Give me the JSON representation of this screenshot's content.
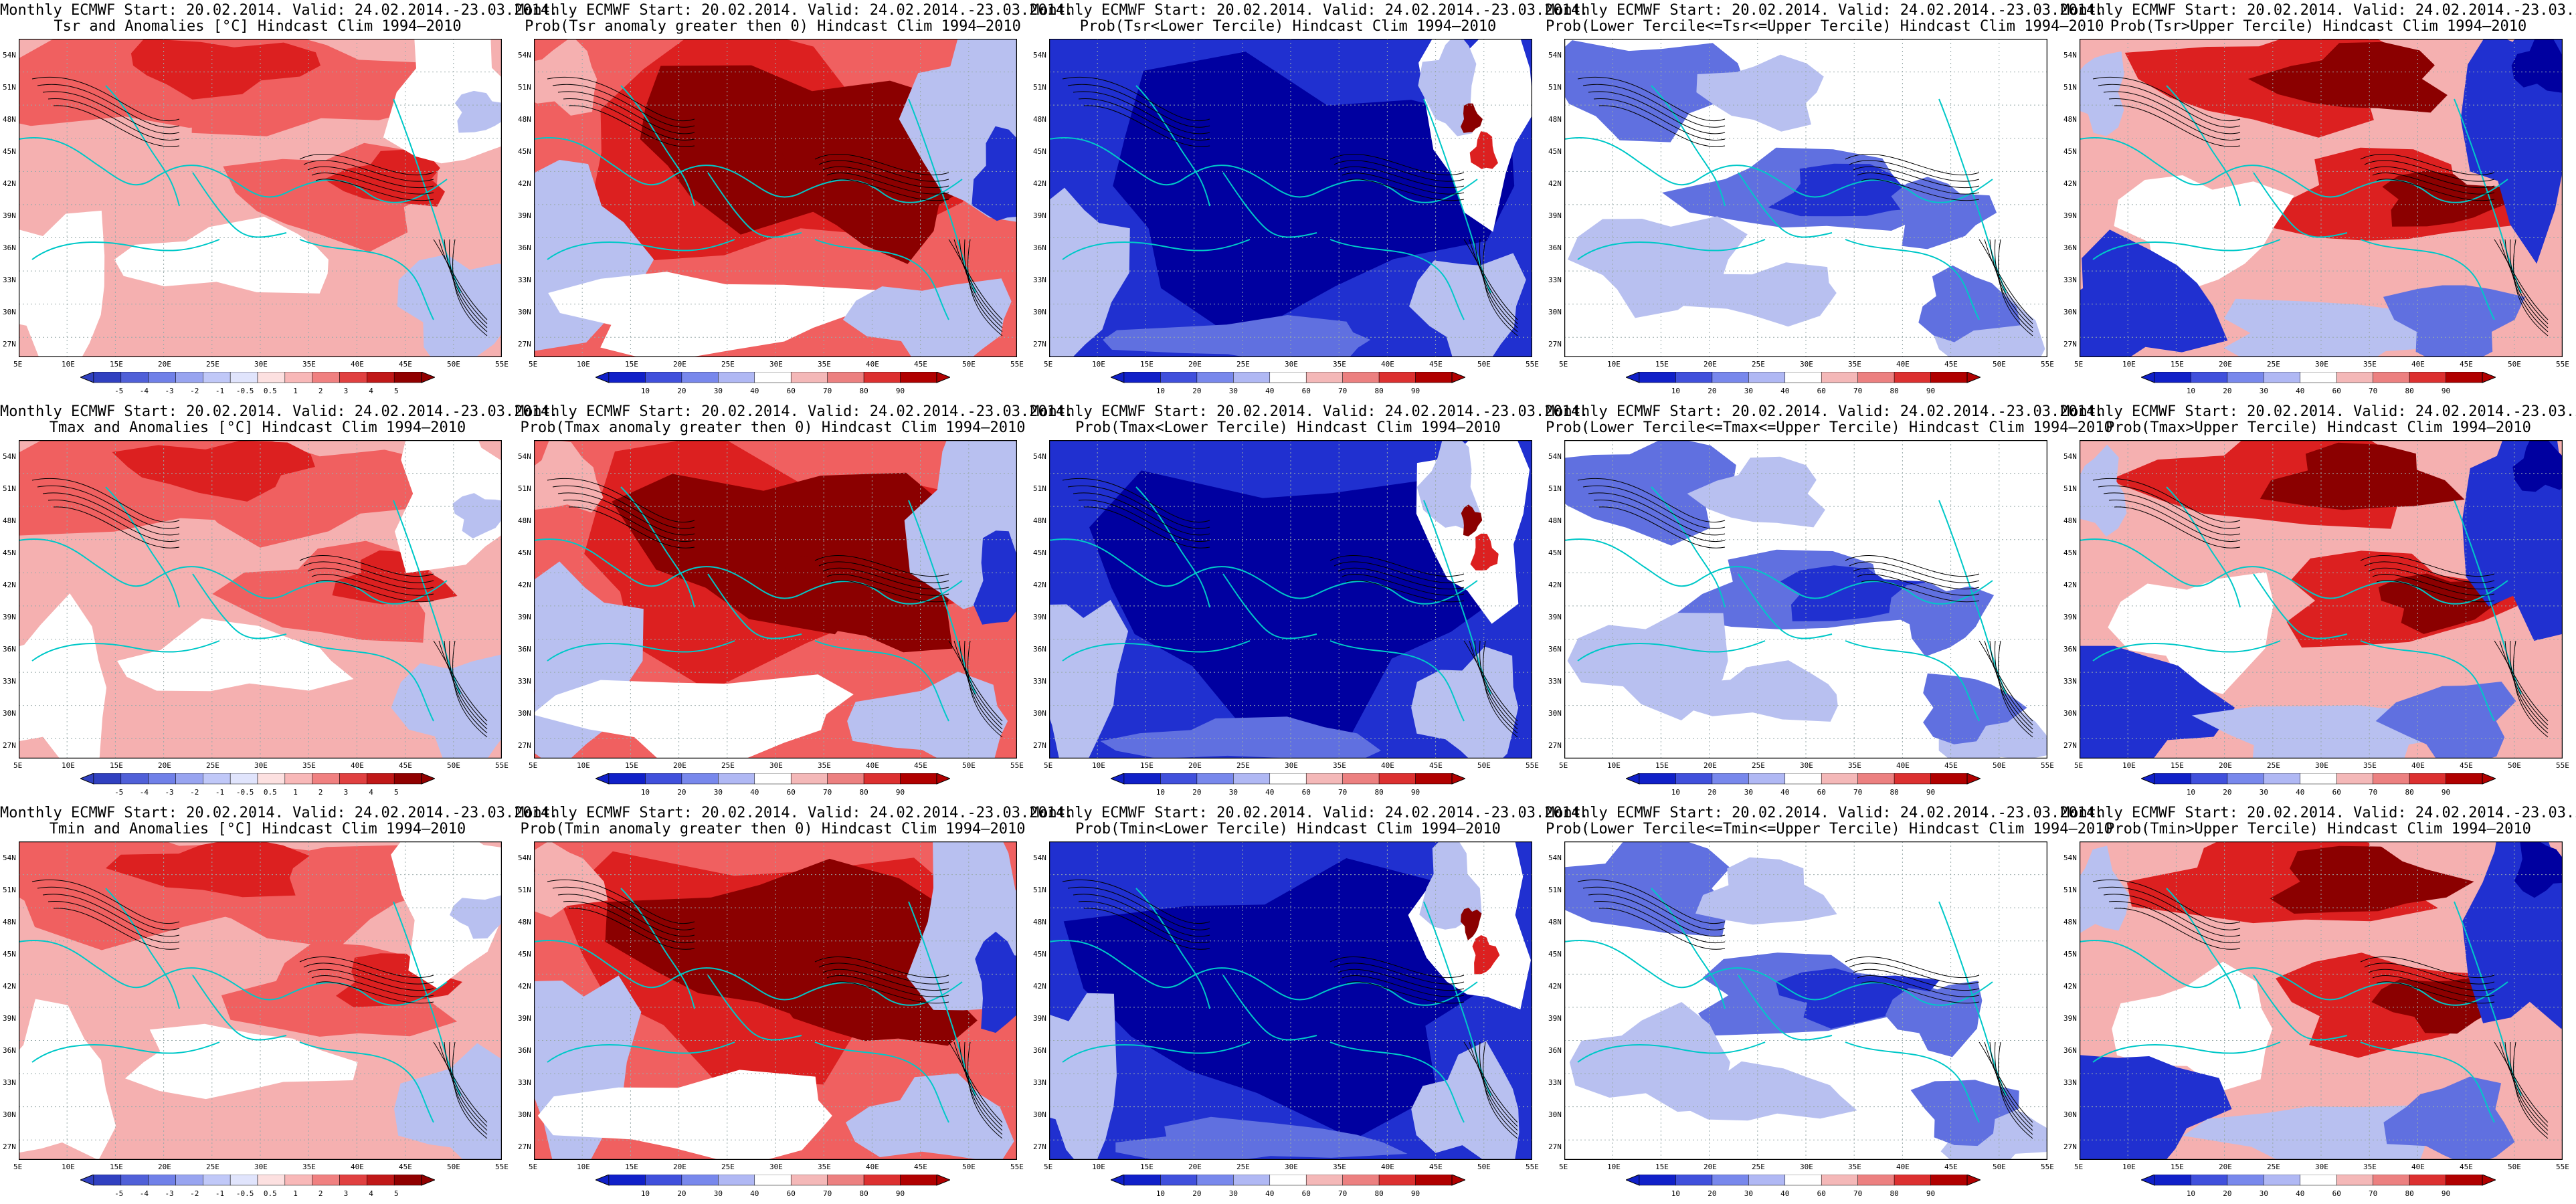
{
  "header_line": "Monthly ECMWF Start: 20.02.2014. Valid: 24.02.2014.-23.03.2014.",
  "lat_labels": [
    "54N",
    "51N",
    "48N",
    "45N",
    "42N",
    "39N",
    "36N",
    "33N",
    "30N",
    "27N"
  ],
  "lon_labels": [
    "5E",
    "10E",
    "15E",
    "20E",
    "25E",
    "30E",
    "35E",
    "40E",
    "45E",
    "50E",
    "55E"
  ],
  "anomaly_ticks": [
    "-5",
    "-4",
    "-3",
    "-2",
    "-1",
    "-0.5",
    "0.5",
    "1",
    "2",
    "3",
    "4",
    "5"
  ],
  "prob_ticks": [
    "10",
    "20",
    "30",
    "40",
    "60",
    "70",
    "80",
    "90"
  ],
  "colors": {
    "red_dark": "#8b0000",
    "red": "#dc2020",
    "red_mid": "#f06060",
    "red_light": "#f5b0b0",
    "white": "#ffffff",
    "blue_light": "#b8c0f0",
    "blue_mid": "#6070e0",
    "blue": "#2030d0",
    "blue_dark": "#0000a0",
    "coast": "#00c8c8",
    "contour": "#000000"
  },
  "rows": [
    {
      "variable": "Tsr",
      "panels": [
        {
          "subtitle": "Tsr and Anomalies [°C] Hindcast Clim 1994–2010",
          "type": "anomaly",
          "theme": "anomaly_warm"
        },
        {
          "subtitle": "Prob(Tsr anomaly greater then 0) Hindcast Clim 1994–2010",
          "type": "prob",
          "theme": "prob_red"
        },
        {
          "subtitle": "Prob(Tsr<Lower Tercile) Hindcast Clim 1994–2010",
          "type": "prob",
          "theme": "prob_blue"
        },
        {
          "subtitle": "Prob(Lower Tercile<=Tsr<=Upper Tercile) Hindcast Clim 1994–2010",
          "type": "prob",
          "theme": "prob_mixed"
        },
        {
          "subtitle": "Prob(Tsr>Upper Tercile) Hindcast Clim 1994–2010",
          "type": "prob",
          "theme": "prob_upper"
        }
      ]
    },
    {
      "variable": "Tmax",
      "panels": [
        {
          "subtitle": "Tmax and Anomalies [°C] Hindcast Clim 1994–2010",
          "type": "anomaly",
          "theme": "anomaly_warm"
        },
        {
          "subtitle": "Prob(Tmax anomaly greater then 0) Hindcast Clim 1994–2010",
          "type": "prob",
          "theme": "prob_red"
        },
        {
          "subtitle": "Prob(Tmax<Lower Tercile) Hindcast Clim 1994–2010",
          "type": "prob",
          "theme": "prob_blue"
        },
        {
          "subtitle": "Prob(Lower Tercile<=Tmax<=Upper Tercile) Hindcast Clim 1994–2010",
          "type": "prob",
          "theme": "prob_mixed"
        },
        {
          "subtitle": "Prob(Tmax>Upper Tercile) Hindcast Clim 1994–2010",
          "type": "prob",
          "theme": "prob_upper"
        }
      ]
    },
    {
      "variable": "Tmin",
      "panels": [
        {
          "subtitle": "Tmin and Anomalies [°C] Hindcast Clim 1994–2010",
          "type": "anomaly",
          "theme": "anomaly_warm"
        },
        {
          "subtitle": "Prob(Tmin anomaly greater then 0) Hindcast Clim 1994–2010",
          "type": "prob",
          "theme": "prob_red"
        },
        {
          "subtitle": "Prob(Tmin<Lower Tercile) Hindcast Clim 1994–2010",
          "type": "prob",
          "theme": "prob_blue"
        },
        {
          "subtitle": "Prob(Lower Tercile<=Tmin<=Upper Tercile) Hindcast Clim 1994–2010",
          "type": "prob",
          "theme": "prob_mixed"
        },
        {
          "subtitle": "Prob(Tmin>Upper Tercile) Hindcast Clim 1994–2010",
          "type": "prob",
          "theme": "prob_upper"
        }
      ]
    }
  ]
}
